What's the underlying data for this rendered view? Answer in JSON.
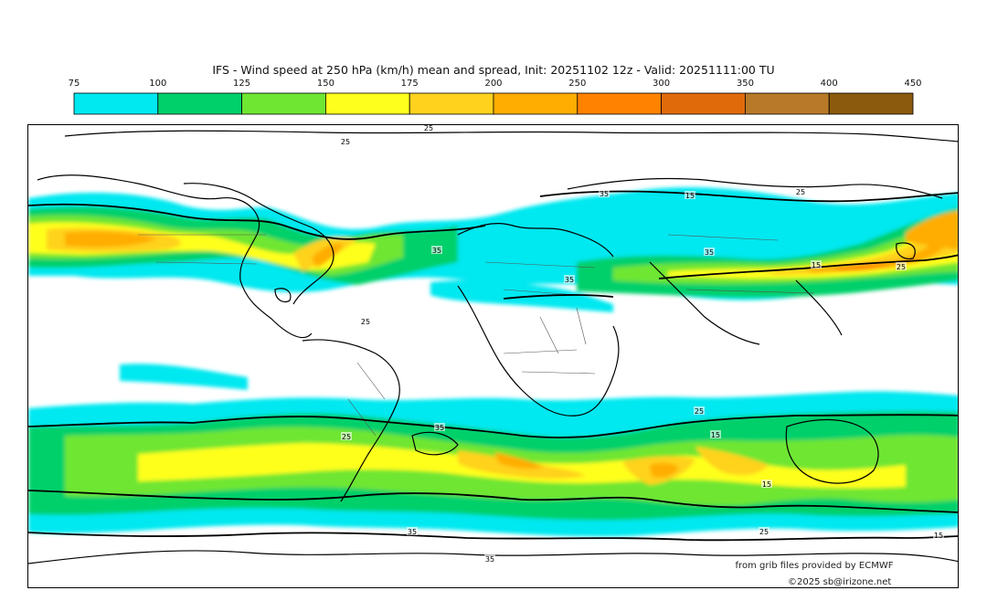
{
  "title": "IFS - Wind speed at 250 hPa (km/h) mean and spread, Init: 20251102 12z - Valid: 20251111:00 TU",
  "colorbar": {
    "ticks": [
      "75",
      "100",
      "125",
      "150",
      "175",
      "200",
      "250",
      "300",
      "350",
      "400",
      "450"
    ],
    "colors": [
      "#00e8f0",
      "#00d06a",
      "#6ee632",
      "#ffff1e",
      "#ffd21e",
      "#ffad00",
      "#ff8200",
      "#e06a0a",
      "#b87a28",
      "#8c5a0c"
    ]
  },
  "contour_labels": [
    "25",
    "25",
    "35",
    "15",
    "25",
    "35",
    "35",
    "15",
    "25",
    "35",
    "25",
    "25",
    "35",
    "15",
    "15",
    "25",
    "15",
    "35",
    "25",
    "35"
  ],
  "credits": {
    "source": "from grib files provided by ECMWF",
    "copyright": "©2025 sb@irizone.net"
  }
}
